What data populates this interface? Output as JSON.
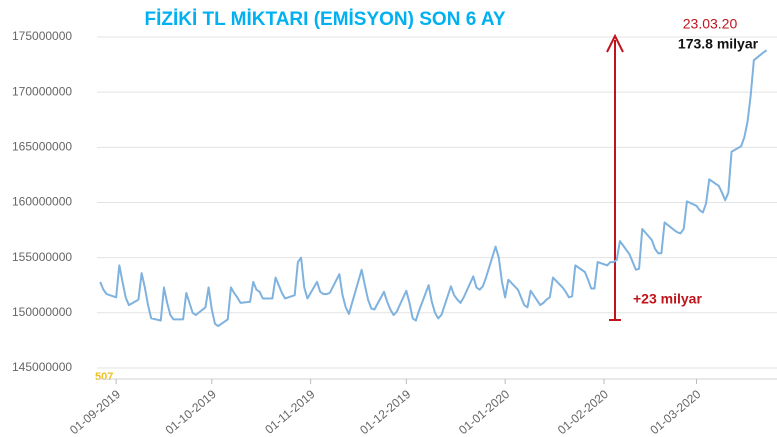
{
  "chart_data": {
    "type": "line",
    "title": "FİZİKİ TL MİKTARI (EMİSYON) SON 6 AY",
    "annotations": [
      "23.03.20",
      "173.8 milyar",
      "+23 milyar",
      "507"
    ],
    "x": [
      -5,
      -4,
      -3,
      0,
      1,
      2,
      3,
      4,
      7,
      8,
      9,
      10,
      11,
      14,
      15,
      16,
      17,
      18,
      21,
      22,
      23,
      24,
      25,
      28,
      29,
      30,
      31,
      32,
      35,
      36,
      37,
      38,
      39,
      42,
      43,
      44,
      45,
      46,
      49,
      50,
      51,
      52,
      53,
      56,
      57,
      58,
      59,
      60,
      63,
      64,
      65,
      66,
      67,
      70,
      71,
      72,
      73,
      74,
      77,
      78,
      79,
      80,
      81,
      84,
      85,
      86,
      87,
      88,
      91,
      92,
      93,
      94,
      95,
      98,
      99,
      100,
      101,
      102,
      105,
      106,
      107,
      108,
      109,
      112,
      113,
      114,
      115,
      116,
      119,
      120,
      121,
      122,
      123,
      126,
      127,
      128,
      129,
      130,
      133,
      134,
      135,
      136,
      137,
      140,
      141,
      142,
      143,
      144,
      147,
      148,
      149,
      150,
      151,
      154,
      155,
      156,
      157,
      158,
      161,
      162,
      163,
      164,
      165,
      168,
      169,
      170,
      171,
      172,
      175,
      176,
      177,
      178,
      179,
      182,
      183,
      184,
      185,
      186,
      189,
      190,
      191,
      192,
      193,
      196,
      197,
      198,
      199,
      200,
      203,
      204
    ],
    "series": [
      {
        "name": "Emisyon",
        "color": "#7fb2de",
        "values": [
          152800000,
          152100000,
          151700000,
          151400000,
          154300000,
          152800000,
          151400000,
          150700000,
          151200000,
          153600000,
          152300000,
          150700000,
          149500000,
          149300000,
          152300000,
          150900000,
          149800000,
          149400000,
          149400000,
          151800000,
          150900000,
          150000000,
          149800000,
          150500000,
          152300000,
          150300000,
          149000000,
          148800000,
          149400000,
          152300000,
          151800000,
          151400000,
          150900000,
          151000000,
          152800000,
          152100000,
          151900000,
          151300000,
          151300000,
          153200000,
          152500000,
          151800000,
          151300000,
          151600000,
          154600000,
          155000000,
          152300000,
          151300000,
          152800000,
          151900000,
          151700000,
          151700000,
          151800000,
          153500000,
          151600000,
          150500000,
          149900000,
          150900000,
          153900000,
          152500000,
          151200000,
          150400000,
          150300000,
          151900000,
          151000000,
          150300000,
          149800000,
          150100000,
          152000000,
          150900000,
          149500000,
          149300000,
          150200000,
          152500000,
          151000000,
          150000000,
          149500000,
          149800000,
          152400000,
          151600000,
          151200000,
          150900000,
          151400000,
          153300000,
          152300000,
          152100000,
          152400000,
          153200000,
          156000000,
          155000000,
          152800000,
          151400000,
          153000000,
          152100000,
          151400000,
          150700000,
          150500000,
          152000000,
          150700000,
          150900000,
          151200000,
          151400000,
          153200000,
          152300000,
          151900000,
          151400000,
          151500000,
          154300000,
          153700000,
          153000000,
          152200000,
          152200000,
          154600000,
          154300000,
          154600000,
          154600000,
          154800000,
          156500000,
          155300000,
          154600000,
          153900000,
          154000000,
          157600000,
          156600000,
          155800000,
          155400000,
          155400000,
          158200000,
          157500000,
          157300000,
          157200000,
          157600000,
          160100000,
          159700000,
          159300000,
          159100000,
          159900000,
          162100000,
          161500000,
          160900000,
          160200000,
          160900000,
          164600000,
          165100000,
          165900000,
          167300000,
          169700000,
          172900000,
          173600000,
          173800000
        ]
      }
    ],
    "xlim": [
      -6,
      206
    ],
    "xticks": [
      {
        "value": 0,
        "label": "01-09-2019"
      },
      {
        "value": 30,
        "label": "01-10-2019"
      },
      {
        "value": 61,
        "label": "01-11-2019"
      },
      {
        "value": 91,
        "label": "01-12-2019"
      },
      {
        "value": 122,
        "label": "01-01-2020"
      },
      {
        "value": 153,
        "label": "01-02-2020"
      },
      {
        "value": 182,
        "label": "01-03-2020"
      }
    ],
    "ylim": [
      144000000,
      175500000
    ],
    "yticks": [
      145000000,
      150000000,
      155000000,
      160000000,
      165000000,
      170000000,
      175000000
    ],
    "grid": true
  }
}
